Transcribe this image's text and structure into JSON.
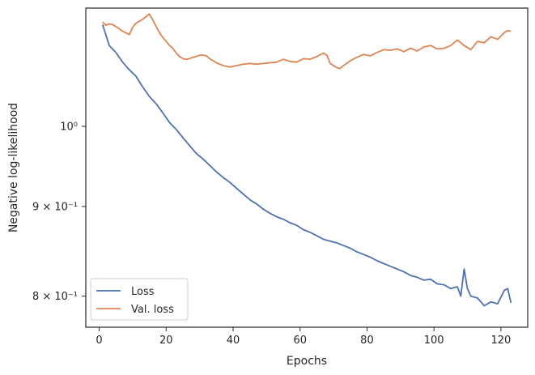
{
  "chart_data": {
    "type": "line",
    "xlabel": "Epochs",
    "ylabel": "Negative log-likelihood",
    "yscale": "log",
    "xlim": [
      -4,
      128
    ],
    "ylim": [
      0.768,
      1.168
    ],
    "xticks": [
      0,
      20,
      40,
      60,
      80,
      100,
      120
    ],
    "yticks": [
      {
        "value": 0.8,
        "label": "8 × 10⁻¹"
      },
      {
        "value": 0.9,
        "label": "9 × 10⁻¹"
      },
      {
        "value": 1.0,
        "label": "10⁰"
      }
    ],
    "grid": false,
    "legend_position": "lower left",
    "series": [
      {
        "name": "Loss",
        "color": "#4c72b0",
        "x": [
          1,
          3,
          5,
          7,
          9,
          11,
          13,
          15,
          17,
          19,
          21,
          23,
          25,
          27,
          29,
          31,
          33,
          35,
          37,
          39,
          41,
          43,
          45,
          47,
          49,
          51,
          53,
          55,
          57,
          59,
          61,
          63,
          65,
          67,
          69,
          71,
          73,
          75,
          77,
          79,
          81,
          83,
          85,
          87,
          89,
          91,
          93,
          95,
          97,
          99,
          101,
          103,
          105,
          107,
          108,
          109,
          110,
          111,
          113,
          115,
          117,
          119,
          121,
          122,
          123
        ],
        "y": [
          1.143,
          1.112,
          1.102,
          1.088,
          1.077,
          1.068,
          1.053,
          1.04,
          1.03,
          1.018,
          1.005,
          0.996,
          0.985,
          0.975,
          0.965,
          0.958,
          0.95,
          0.942,
          0.935,
          0.929,
          0.922,
          0.915,
          0.908,
          0.903,
          0.897,
          0.892,
          0.888,
          0.885,
          0.881,
          0.878,
          0.873,
          0.87,
          0.866,
          0.862,
          0.86,
          0.858,
          0.855,
          0.852,
          0.848,
          0.845,
          0.842,
          0.838,
          0.835,
          0.832,
          0.829,
          0.826,
          0.822,
          0.82,
          0.817,
          0.818,
          0.813,
          0.812,
          0.808,
          0.81,
          0.8,
          0.829,
          0.808,
          0.8,
          0.798,
          0.79,
          0.794,
          0.792,
          0.806,
          0.808,
          0.793
        ]
      },
      {
        "name": "Val. loss",
        "color": "#dd8452",
        "x": [
          1,
          2,
          3,
          4,
          5,
          7,
          9,
          10,
          11,
          12,
          13,
          14,
          15,
          16,
          17,
          18,
          19,
          20,
          21,
          22,
          23,
          24,
          25,
          26,
          27,
          28,
          29,
          30,
          31,
          32,
          33,
          35,
          37,
          39,
          41,
          43,
          45,
          47,
          49,
          51,
          53,
          55,
          57,
          59,
          61,
          63,
          65,
          67,
          68,
          69,
          71,
          72,
          73,
          75,
          77,
          79,
          81,
          83,
          85,
          87,
          89,
          91,
          93,
          95,
          97,
          99,
          101,
          103,
          105,
          107,
          109,
          110,
          111,
          113,
          115,
          117,
          119,
          121,
          122,
          123
        ],
        "y": [
          1.147,
          1.142,
          1.144,
          1.143,
          1.14,
          1.133,
          1.128,
          1.139,
          1.145,
          1.148,
          1.151,
          1.155,
          1.159,
          1.15,
          1.14,
          1.131,
          1.124,
          1.118,
          1.112,
          1.108,
          1.101,
          1.096,
          1.093,
          1.092,
          1.093,
          1.095,
          1.096,
          1.098,
          1.098,
          1.097,
          1.093,
          1.087,
          1.083,
          1.081,
          1.083,
          1.085,
          1.086,
          1.085,
          1.086,
          1.087,
          1.088,
          1.092,
          1.089,
          1.088,
          1.093,
          1.092,
          1.096,
          1.101,
          1.098,
          1.086,
          1.08,
          1.079,
          1.083,
          1.09,
          1.095,
          1.099,
          1.097,
          1.102,
          1.106,
          1.105,
          1.107,
          1.103,
          1.108,
          1.104,
          1.11,
          1.112,
          1.107,
          1.108,
          1.112,
          1.12,
          1.112,
          1.109,
          1.106,
          1.118,
          1.116,
          1.125,
          1.121,
          1.131,
          1.134,
          1.133
        ]
      }
    ]
  }
}
